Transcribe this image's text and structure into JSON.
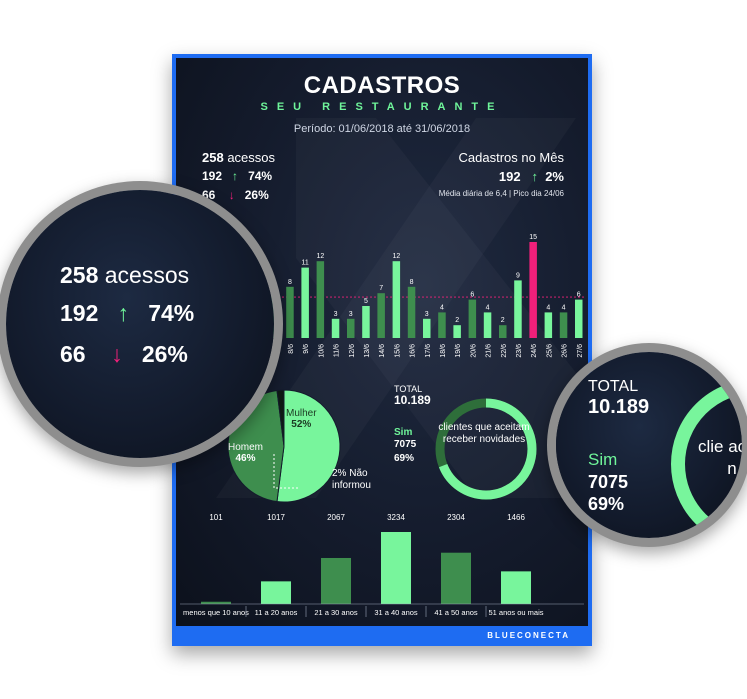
{
  "header": {
    "title": "CADASTROS",
    "subtitle": "SEU RESTAURANTE",
    "period": "Período: 01/06/2018 até 31/06/2018"
  },
  "acessos": {
    "total_value": "258",
    "total_label": "acessos",
    "up_value": "192",
    "up_pct": "74%",
    "down_value": "66",
    "down_pct": "26%"
  },
  "cadastros_mes": {
    "title": "Cadastros no Mês",
    "value": "192",
    "pct": "2%",
    "note": "Média diária de 6,4 | Pico dia 24/06"
  },
  "donut": {
    "total_label": "TOTAL",
    "total_value": "10.189",
    "sim_label": "Sim",
    "sim_value": "7075",
    "sim_pct": "69%",
    "center_text": "clientes que aceitam receber novidades",
    "zoom_center_text": "clie ac re n"
  },
  "gender": {
    "mulher_label": "Mulher",
    "mulher_pct": "52%",
    "homem_label": "Homem",
    "homem_pct": "46%",
    "nao_label": "2% Não informou"
  },
  "brand": {
    "name": "BLUECONECTA"
  },
  "colors": {
    "green_light": "#78f59c",
    "green_dark": "#3e8e4e",
    "pink": "#f0207a",
    "blue": "#1e6cf2",
    "background": "#141b2c"
  },
  "chart_data": [
    {
      "type": "bar",
      "categories": [
        "7/6",
        "8/6",
        "9/6",
        "10/6",
        "11/6",
        "12/6",
        "13/6",
        "14/6",
        "15/6",
        "16/6",
        "17/6",
        "18/6",
        "19/6",
        "20/6",
        "21/6",
        "22/6",
        "23/6",
        "24/6",
        "25/6",
        "26/6",
        "27/6",
        "28/6",
        "29/6",
        "30/6"
      ],
      "values": [
        7,
        8,
        11,
        12,
        3,
        3,
        5,
        7,
        12,
        8,
        3,
        4,
        2,
        6,
        4,
        2,
        9,
        15,
        4,
        4,
        6,
        2,
        7,
        7
      ],
      "highlight_index": 17,
      "reference_line": 6.4,
      "ylim": [
        0,
        15
      ]
    },
    {
      "type": "bar",
      "categories": [
        "menos que 10 anos",
        "11 a 20 anos",
        "21 a 30 anos",
        "31 a 40 anos",
        "41 a 50 anos",
        "51 anos ou mais"
      ],
      "values": [
        101,
        1017,
        2067,
        3234,
        2304,
        1466
      ],
      "ylim": [
        0,
        3234
      ]
    },
    {
      "type": "pie",
      "categories": [
        "Mulher",
        "Homem",
        "Não informou"
      ],
      "values": [
        52,
        46,
        2
      ]
    }
  ]
}
